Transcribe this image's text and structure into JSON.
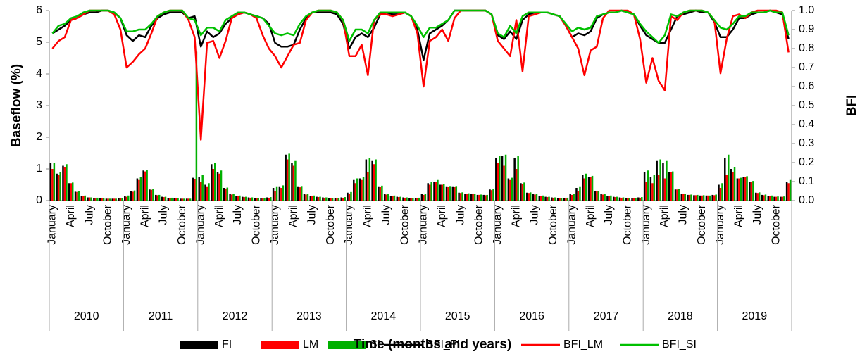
{
  "chart_data": {
    "type": "bar",
    "y_label": "Baseflow (%)",
    "y2_label": "BFI",
    "x_label": "Time (months and years)",
    "categories": [
      "January",
      null,
      null,
      "April",
      null,
      null,
      "July",
      null,
      null,
      "October",
      null,
      null,
      "January",
      null,
      null,
      "April",
      null,
      null,
      "July",
      null,
      null,
      "October",
      null,
      null,
      "January",
      null,
      null,
      "April",
      null,
      null,
      "July",
      null,
      null,
      "October",
      null,
      null,
      "January",
      null,
      null,
      "April",
      null,
      null,
      "July",
      null,
      null,
      "October",
      null,
      null,
      "January",
      null,
      null,
      "April",
      null,
      null,
      "July",
      null,
      null,
      "October",
      null,
      null,
      "January",
      null,
      null,
      "April",
      null,
      null,
      "July",
      null,
      null,
      "October",
      null,
      null,
      "January",
      null,
      null,
      "April",
      null,
      null,
      "July",
      null,
      null,
      "October",
      null,
      null,
      "January",
      null,
      null,
      "April",
      null,
      null,
      "July",
      null,
      null,
      "October",
      null,
      null,
      "January",
      null,
      null,
      "April",
      null,
      null,
      "July",
      null,
      null,
      "October",
      null,
      null,
      "January",
      null,
      null,
      "April",
      null,
      null,
      "July",
      null,
      null,
      "October",
      null,
      null
    ],
    "category_groups": [
      "2010",
      "2011",
      "2012",
      "2013",
      "2014",
      "2015",
      "2016",
      "2017",
      "2018",
      "2019"
    ],
    "ylim": [
      0,
      6
    ],
    "yticks": [
      0,
      1,
      2,
      3,
      4,
      5,
      6
    ],
    "y2lim": [
      0,
      1
    ],
    "y2ticks": [
      {
        "value": 0,
        "label": "0.0"
      },
      0.1,
      0.2,
      0.3,
      0.4,
      0.5,
      0.6,
      0.7,
      0.8,
      0.9,
      {
        "value": 1,
        "label": "1.0"
      }
    ],
    "series": [
      {
        "name": "FI",
        "type": "bar",
        "color": "#000000",
        "values": [
          1.2,
          0.85,
          1.1,
          0.55,
          0.28,
          0.15,
          0.1,
          0.08,
          0.07,
          0.06,
          0.06,
          0.08,
          0.15,
          0.3,
          0.7,
          0.95,
          0.35,
          0.18,
          0.12,
          0.08,
          0.07,
          0.06,
          0.06,
          0.72,
          0.75,
          0.5,
          1.15,
          0.9,
          0.4,
          0.2,
          0.15,
          0.12,
          0.1,
          0.08,
          0.07,
          0.1,
          0.4,
          0.45,
          1.45,
          1.2,
          0.45,
          0.2,
          0.15,
          0.12,
          0.1,
          0.08,
          0.07,
          0.1,
          0.25,
          0.65,
          0.7,
          1.3,
          1.25,
          0.45,
          0.2,
          0.15,
          0.12,
          0.1,
          0.08,
          0.08,
          0.2,
          0.55,
          0.6,
          0.5,
          0.45,
          0.45,
          0.25,
          0.22,
          0.2,
          0.18,
          0.18,
          0.35,
          1.35,
          1.4,
          0.7,
          1.35,
          0.55,
          0.25,
          0.2,
          0.15,
          0.12,
          0.1,
          0.08,
          0.08,
          0.2,
          0.4,
          0.8,
          0.75,
          0.3,
          0.2,
          0.15,
          0.12,
          0.1,
          0.08,
          0.08,
          0.1,
          0.9,
          0.75,
          1.25,
          1.2,
          0.9,
          0.35,
          0.2,
          0.18,
          0.17,
          0.16,
          0.16,
          0.18,
          0.5,
          1.35,
          1.0,
          0.7,
          0.75,
          0.6,
          0.25,
          0.18,
          0.15,
          0.12,
          0.12,
          0.6
        ]
      },
      {
        "name": "LM",
        "type": "bar",
        "color": "#ff0000",
        "values": [
          1.0,
          0.8,
          1.05,
          0.55,
          0.27,
          0.14,
          0.1,
          0.08,
          0.07,
          0.06,
          0.06,
          0.07,
          0.12,
          0.28,
          0.65,
          0.92,
          0.34,
          0.17,
          0.11,
          0.08,
          0.07,
          0.06,
          0.06,
          0.68,
          0.6,
          0.45,
          1.0,
          0.85,
          0.38,
          0.19,
          0.14,
          0.11,
          0.09,
          0.07,
          0.07,
          0.09,
          0.3,
          0.4,
          1.3,
          1.1,
          0.42,
          0.19,
          0.14,
          0.11,
          0.09,
          0.07,
          0.07,
          0.09,
          0.2,
          0.55,
          0.65,
          0.9,
          1.15,
          0.43,
          0.19,
          0.14,
          0.11,
          0.09,
          0.08,
          0.08,
          0.18,
          0.5,
          0.58,
          0.5,
          0.44,
          0.44,
          0.24,
          0.21,
          0.2,
          0.18,
          0.17,
          0.33,
          1.2,
          1.1,
          0.65,
          1.0,
          0.53,
          0.24,
          0.19,
          0.14,
          0.11,
          0.09,
          0.08,
          0.08,
          0.18,
          0.3,
          0.7,
          0.75,
          0.3,
          0.19,
          0.14,
          0.11,
          0.09,
          0.08,
          0.08,
          0.09,
          0.6,
          0.55,
          0.8,
          0.7,
          0.9,
          0.35,
          0.2,
          0.18,
          0.17,
          0.16,
          0.16,
          0.17,
          0.4,
          0.8,
          0.9,
          0.7,
          0.75,
          0.6,
          0.24,
          0.17,
          0.14,
          0.12,
          0.12,
          0.55
        ]
      },
      {
        "name": "SI",
        "type": "bar",
        "color": "#00b000",
        "values": [
          1.2,
          0.9,
          1.15,
          0.57,
          0.29,
          0.16,
          0.1,
          0.09,
          0.07,
          0.06,
          0.06,
          0.08,
          0.16,
          0.32,
          0.75,
          0.97,
          0.36,
          0.18,
          0.12,
          0.09,
          0.07,
          0.06,
          0.06,
          4.7,
          0.8,
          0.55,
          1.2,
          0.95,
          0.41,
          0.21,
          0.16,
          0.12,
          0.1,
          0.08,
          0.07,
          0.11,
          0.45,
          0.48,
          1.48,
          1.25,
          0.46,
          0.21,
          0.16,
          0.12,
          0.1,
          0.08,
          0.07,
          0.11,
          0.27,
          0.7,
          0.75,
          1.35,
          1.3,
          0.47,
          0.21,
          0.16,
          0.12,
          0.1,
          0.08,
          0.09,
          0.22,
          0.6,
          0.65,
          0.52,
          0.46,
          0.46,
          0.26,
          0.23,
          0.21,
          0.19,
          0.18,
          0.37,
          1.4,
          1.45,
          0.72,
          1.4,
          0.57,
          0.26,
          0.21,
          0.16,
          0.12,
          0.1,
          0.08,
          0.09,
          0.22,
          0.45,
          0.85,
          0.78,
          0.31,
          0.21,
          0.16,
          0.12,
          0.1,
          0.08,
          0.08,
          0.11,
          0.95,
          0.8,
          1.3,
          1.25,
          0.92,
          0.37,
          0.21,
          0.19,
          0.18,
          0.17,
          0.16,
          0.19,
          0.55,
          1.45,
          1.05,
          0.72,
          0.77,
          0.62,
          0.26,
          0.19,
          0.16,
          0.13,
          0.13,
          0.65
        ]
      },
      {
        "name": "BFI_FI",
        "type": "line",
        "axis": "y2",
        "color": "#000000",
        "values": [
          0.88,
          0.9,
          0.92,
          0.95,
          0.96,
          0.98,
          0.99,
          0.99,
          1.0,
          1.0,
          0.99,
          0.96,
          0.87,
          0.84,
          0.87,
          0.86,
          0.92,
          0.96,
          0.98,
          0.99,
          0.99,
          0.99,
          0.96,
          0.97,
          0.81,
          0.89,
          0.86,
          0.88,
          0.93,
          0.96,
          0.98,
          0.99,
          0.98,
          0.97,
          0.96,
          0.93,
          0.83,
          0.81,
          0.81,
          0.82,
          0.9,
          0.96,
          0.99,
          0.99,
          0.99,
          0.99,
          0.98,
          0.93,
          0.8,
          0.86,
          0.88,
          0.86,
          0.91,
          0.98,
          0.99,
          0.98,
          0.98,
          0.99,
          0.97,
          0.9,
          0.74,
          0.88,
          0.9,
          0.92,
          0.95,
          1.0,
          1.0,
          1.0,
          1.0,
          1.0,
          1.0,
          0.98,
          0.87,
          0.85,
          0.89,
          0.85,
          0.95,
          0.98,
          0.99,
          0.99,
          0.99,
          0.98,
          0.97,
          0.92,
          0.86,
          0.88,
          0.87,
          0.89,
          0.96,
          0.98,
          0.99,
          0.99,
          1.0,
          0.99,
          0.98,
          0.92,
          0.87,
          0.85,
          0.83,
          0.83,
          0.9,
          0.97,
          0.98,
          0.99,
          1.0,
          0.99,
          0.99,
          0.94,
          0.86,
          0.86,
          0.9,
          0.96,
          0.96,
          0.98,
          0.99,
          0.99,
          1.0,
          0.99,
          0.98,
          0.85
        ]
      },
      {
        "name": "BFI_LM",
        "type": "line",
        "axis": "y2",
        "color": "#ff0000",
        "values": [
          0.8,
          0.84,
          0.86,
          0.95,
          0.96,
          0.98,
          1.0,
          1.0,
          1.0,
          1.0,
          0.98,
          0.9,
          0.7,
          0.73,
          0.77,
          0.8,
          0.88,
          0.97,
          0.99,
          1.0,
          1.0,
          1.0,
          0.95,
          0.86,
          0.32,
          0.83,
          0.84,
          0.75,
          0.84,
          0.96,
          0.98,
          0.99,
          0.98,
          0.96,
          0.87,
          0.8,
          0.76,
          0.7,
          0.76,
          0.82,
          0.83,
          0.95,
          0.99,
          1.0,
          1.0,
          1.0,
          0.99,
          0.95,
          0.76,
          0.76,
          0.82,
          0.66,
          0.95,
          0.98,
          0.98,
          0.97,
          0.98,
          0.99,
          0.97,
          0.88,
          0.6,
          0.84,
          0.86,
          0.9,
          0.84,
          0.96,
          1.0,
          1.0,
          1.0,
          1.0,
          1.0,
          0.98,
          0.84,
          0.8,
          0.76,
          0.95,
          0.68,
          0.97,
          0.98,
          0.99,
          0.99,
          0.98,
          0.97,
          0.92,
          0.86,
          0.8,
          0.66,
          0.79,
          0.81,
          0.96,
          1.0,
          1.0,
          1.0,
          1.0,
          0.98,
          0.85,
          0.62,
          0.75,
          0.63,
          0.58,
          0.97,
          0.95,
          0.99,
          1.0,
          1.0,
          1.0,
          0.99,
          0.95,
          0.67,
          0.85,
          0.97,
          0.98,
          0.96,
          0.99,
          1.0,
          1.0,
          1.0,
          1.0,
          0.99,
          0.78
        ]
      },
      {
        "name": "BFI_SI",
        "type": "line",
        "axis": "y2",
        "color": "#00c000",
        "values": [
          0.88,
          0.92,
          0.93,
          0.96,
          0.97,
          0.99,
          1.0,
          1.0,
          1.0,
          1.0,
          0.99,
          0.96,
          0.89,
          0.89,
          0.9,
          0.9,
          0.93,
          0.97,
          0.99,
          1.0,
          1.0,
          1.0,
          0.96,
          0.95,
          0.87,
          0.91,
          0.91,
          0.89,
          0.95,
          0.97,
          0.99,
          0.99,
          0.98,
          0.97,
          0.96,
          0.92,
          0.88,
          0.87,
          0.88,
          0.87,
          0.93,
          0.97,
          0.99,
          1.0,
          1.0,
          1.0,
          0.99,
          0.95,
          0.84,
          0.9,
          0.9,
          0.88,
          0.95,
          0.99,
          0.99,
          0.99,
          0.99,
          0.99,
          0.97,
          0.92,
          0.86,
          0.91,
          0.91,
          0.93,
          0.95,
          1.0,
          1.0,
          1.0,
          1.0,
          1.0,
          1.0,
          0.98,
          0.88,
          0.86,
          0.92,
          0.88,
          0.97,
          0.99,
          0.99,
          0.99,
          0.99,
          0.98,
          0.97,
          0.93,
          0.89,
          0.91,
          0.9,
          0.91,
          0.97,
          0.98,
          0.99,
          0.99,
          1.0,
          0.99,
          0.98,
          0.93,
          0.89,
          0.86,
          0.83,
          0.87,
          0.98,
          0.97,
          0.99,
          1.0,
          1.0,
          1.0,
          0.99,
          0.95,
          0.91,
          0.9,
          0.93,
          0.97,
          0.97,
          0.99,
          0.99,
          0.99,
          1.0,
          0.99,
          0.99,
          0.87
        ]
      }
    ]
  }
}
